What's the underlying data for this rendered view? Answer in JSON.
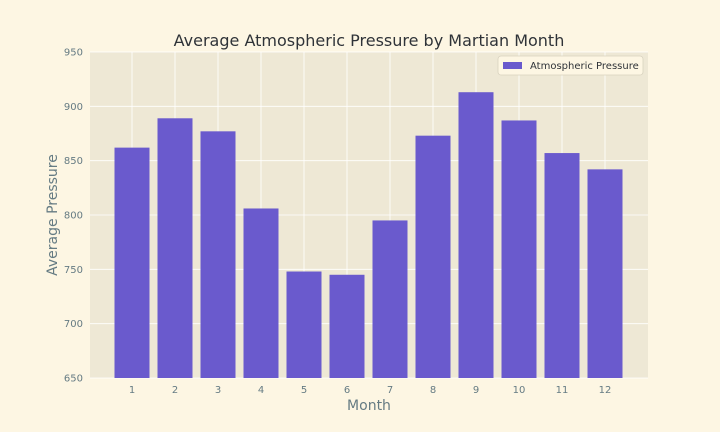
{
  "chart_data": {
    "type": "bar",
    "title": "Average Atmospheric Pressure by Martian Month",
    "xlabel": "Month",
    "ylabel": "Average Pressure",
    "categories": [
      "1",
      "2",
      "3",
      "4",
      "5",
      "6",
      "7",
      "8",
      "9",
      "10",
      "11",
      "12"
    ],
    "series": [
      {
        "name": "Atmospheric Pressure",
        "values": [
          862,
          889,
          877,
          806,
          748,
          745,
          795,
          873,
          913,
          887,
          857,
          842
        ]
      }
    ],
    "ylim": [
      650,
      950
    ],
    "yticks": [
      650,
      700,
      750,
      800,
      850,
      900,
      950
    ],
    "grid": true,
    "legend_position": "top-right",
    "colors": {
      "bar": "#6a5acd",
      "plot_background": "#eee8d5",
      "figure_background": "#fdf6e3",
      "grid": "#ffffff"
    }
  }
}
